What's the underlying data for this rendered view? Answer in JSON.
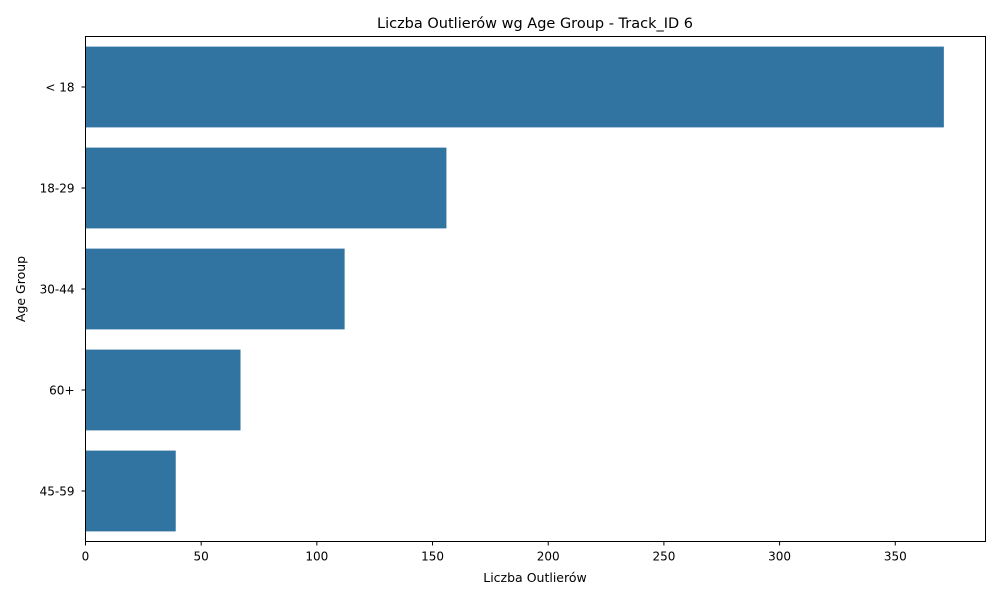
{
  "chart_data": {
    "type": "bar",
    "orientation": "horizontal",
    "title": "Liczba Outlierów wg Age Group - Track_ID 6",
    "xlabel": "Liczba Outlierów",
    "ylabel": "Age Group",
    "categories": [
      "< 18",
      "18-29",
      "30-44",
      "60+",
      "45-59"
    ],
    "values": [
      371,
      156,
      112,
      67,
      39
    ],
    "xlim": [
      0,
      389
    ],
    "xticks": [
      0,
      50,
      100,
      150,
      200,
      250,
      300,
      350
    ],
    "grid": false,
    "legend": "none",
    "bar_color": "#3274a1"
  }
}
